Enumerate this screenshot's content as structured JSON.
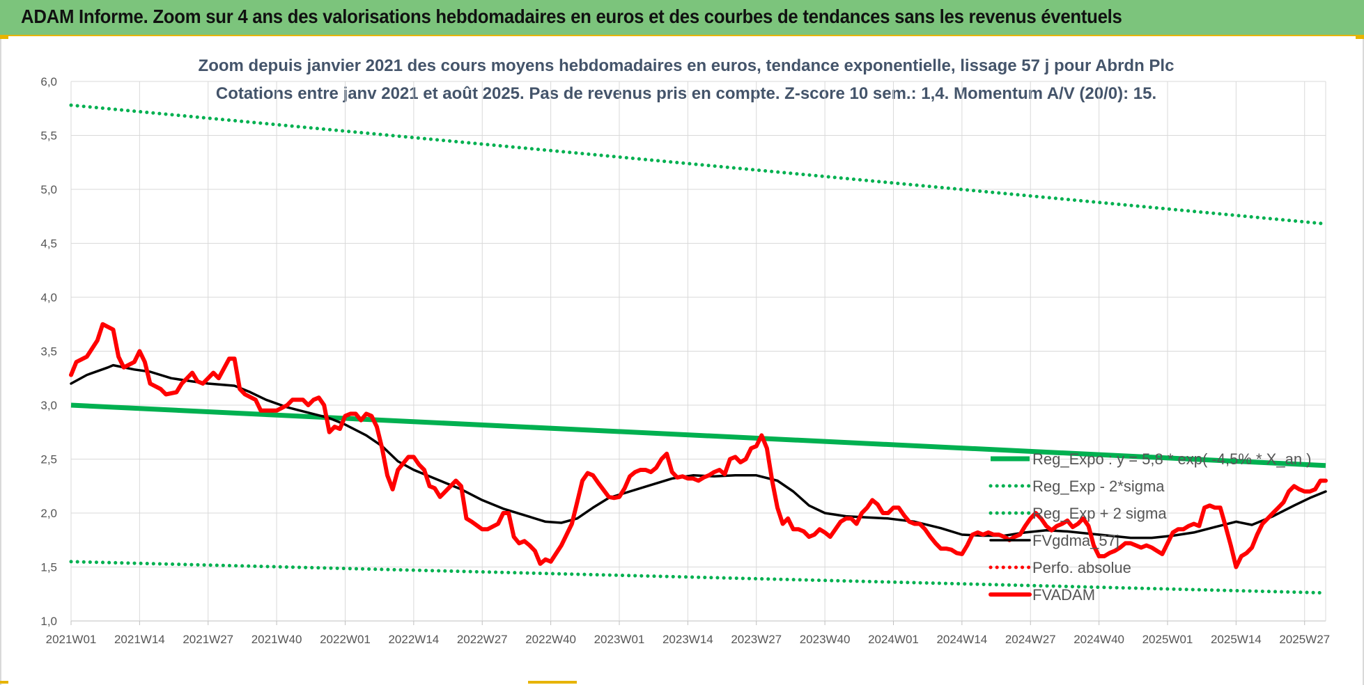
{
  "header": {
    "title": "ADAM Informe. Zoom sur 4 ans des valorisations hebdomadaires en euros et des courbes de tendances sans les revenus éventuels"
  },
  "chart_data": {
    "type": "line",
    "title": "Zoom depuis janvier 2021 des cours moyens hebdomadaires en euros, tendance exponentielle, lissage 57 j pour Abrdn Plc",
    "subtitle": "Cotations entre janv 2021 et août 2025.  Pas de revenus pris en compte. Z-score 10 sem.: 1,4. Momentum A/V (20/0): 15.",
    "xlabel": "",
    "ylabel": "",
    "ylim": [
      1.0,
      6.0
    ],
    "y_ticks": [
      "1,0",
      "1,5",
      "2,0",
      "2,5",
      "3,0",
      "3,5",
      "4,0",
      "4,5",
      "5,0",
      "5,5",
      "6,0"
    ],
    "x_week_range": [
      0,
      238
    ],
    "x_ticks": [
      {
        "w": 0,
        "label": "2021W01"
      },
      {
        "w": 13,
        "label": "2021W14"
      },
      {
        "w": 26,
        "label": "2021W27"
      },
      {
        "w": 39,
        "label": "2021W40"
      },
      {
        "w": 52,
        "label": "2022W01"
      },
      {
        "w": 65,
        "label": "2022W14"
      },
      {
        "w": 78,
        "label": "2022W27"
      },
      {
        "w": 91,
        "label": "2022W40"
      },
      {
        "w": 104,
        "label": "2023W01"
      },
      {
        "w": 117,
        "label": "2023W14"
      },
      {
        "w": 130,
        "label": "2023W27"
      },
      {
        "w": 143,
        "label": "2023W40"
      },
      {
        "w": 156,
        "label": "2024W01"
      },
      {
        "w": 169,
        "label": "2024W14"
      },
      {
        "w": 182,
        "label": "2024W27"
      },
      {
        "w": 195,
        "label": "2024W40"
      },
      {
        "w": 208,
        "label": "2025W01"
      },
      {
        "w": 221,
        "label": "2025W14"
      },
      {
        "w": 234,
        "label": "2025W27"
      }
    ],
    "grid": true,
    "legend_position": "right",
    "series": [
      {
        "name": "Reg_Expo : y = 5,8 * exp( -4,5% * X_an )",
        "style": "solid",
        "color": "#00b050",
        "points": [
          [
            0,
            3.0
          ],
          [
            238,
            2.44
          ]
        ]
      },
      {
        "name": "Reg_Exp - 2*sigma",
        "style": "dotted",
        "color": "#00b050",
        "points": [
          [
            0,
            1.55
          ],
          [
            238,
            1.26
          ]
        ]
      },
      {
        "name": "Reg_Exp + 2 sigma",
        "style": "dotted",
        "color": "#00b050",
        "points": [
          [
            0,
            5.78
          ],
          [
            238,
            4.68
          ]
        ]
      },
      {
        "name": "FVgdma_57j",
        "style": "solid-thin",
        "color": "#000000",
        "points": [
          [
            0,
            3.2
          ],
          [
            3,
            3.28
          ],
          [
            7,
            3.35
          ],
          [
            8,
            3.37
          ],
          [
            12,
            3.33
          ],
          [
            15,
            3.31
          ],
          [
            19,
            3.25
          ],
          [
            23,
            3.22
          ],
          [
            26,
            3.2
          ],
          [
            31,
            3.18
          ],
          [
            34,
            3.12
          ],
          [
            37,
            3.05
          ],
          [
            41,
            2.98
          ],
          [
            45,
            2.93
          ],
          [
            49,
            2.88
          ],
          [
            52,
            2.82
          ],
          [
            56,
            2.72
          ],
          [
            59,
            2.62
          ],
          [
            62,
            2.48
          ],
          [
            65,
            2.4
          ],
          [
            69,
            2.32
          ],
          [
            74,
            2.22
          ],
          [
            78,
            2.12
          ],
          [
            82,
            2.04
          ],
          [
            86,
            1.98
          ],
          [
            90,
            1.92
          ],
          [
            93,
            1.91
          ],
          [
            96,
            1.95
          ],
          [
            99,
            2.05
          ],
          [
            102,
            2.14
          ],
          [
            106,
            2.2
          ],
          [
            110,
            2.26
          ],
          [
            114,
            2.32
          ],
          [
            118,
            2.35
          ],
          [
            122,
            2.34
          ],
          [
            126,
            2.35
          ],
          [
            130,
            2.35
          ],
          [
            134,
            2.3
          ],
          [
            137,
            2.2
          ],
          [
            140,
            2.07
          ],
          [
            143,
            2.0
          ],
          [
            147,
            1.97
          ],
          [
            151,
            1.96
          ],
          [
            155,
            1.95
          ],
          [
            160,
            1.92
          ],
          [
            165,
            1.86
          ],
          [
            169,
            1.8
          ],
          [
            173,
            1.79
          ],
          [
            177,
            1.79
          ],
          [
            181,
            1.82
          ],
          [
            185,
            1.84
          ],
          [
            189,
            1.83
          ],
          [
            193,
            1.81
          ],
          [
            197,
            1.79
          ],
          [
            201,
            1.77
          ],
          [
            205,
            1.77
          ],
          [
            209,
            1.79
          ],
          [
            213,
            1.82
          ],
          [
            217,
            1.87
          ],
          [
            221,
            1.92
          ],
          [
            224,
            1.89
          ],
          [
            228,
            1.97
          ],
          [
            232,
            2.07
          ],
          [
            235,
            2.14
          ],
          [
            238,
            2.2
          ]
        ]
      },
      {
        "name": "Perfo. absolue",
        "style": "dotted",
        "color": "#ff0000",
        "points": []
      },
      {
        "name": "FVADAM",
        "style": "solid-thick",
        "color": "#ff0000",
        "points": [
          [
            0,
            3.28
          ],
          [
            1,
            3.4
          ],
          [
            3,
            3.45
          ],
          [
            5,
            3.6
          ],
          [
            6,
            3.75
          ],
          [
            8,
            3.7
          ],
          [
            9,
            3.45
          ],
          [
            10,
            3.35
          ],
          [
            12,
            3.4
          ],
          [
            13,
            3.5
          ],
          [
            14,
            3.4
          ],
          [
            15,
            3.2
          ],
          [
            17,
            3.15
          ],
          [
            18,
            3.1
          ],
          [
            20,
            3.12
          ],
          [
            21,
            3.2
          ],
          [
            22,
            3.25
          ],
          [
            23,
            3.3
          ],
          [
            24,
            3.22
          ],
          [
            25,
            3.2
          ],
          [
            26,
            3.25
          ],
          [
            27,
            3.3
          ],
          [
            28,
            3.25
          ],
          [
            30,
            3.43
          ],
          [
            31,
            3.43
          ],
          [
            32,
            3.15
          ],
          [
            33,
            3.1
          ],
          [
            35,
            3.05
          ],
          [
            36,
            2.95
          ],
          [
            38,
            2.95
          ],
          [
            39,
            2.95
          ],
          [
            41,
            3.0
          ],
          [
            42,
            3.05
          ],
          [
            44,
            3.05
          ],
          [
            45,
            3.0
          ],
          [
            46,
            3.05
          ],
          [
            47,
            3.07
          ],
          [
            48,
            3.0
          ],
          [
            49,
            2.75
          ],
          [
            50,
            2.8
          ],
          [
            51,
            2.78
          ],
          [
            52,
            2.9
          ],
          [
            53,
            2.92
          ],
          [
            54,
            2.92
          ],
          [
            55,
            2.86
          ],
          [
            56,
            2.92
          ],
          [
            57,
            2.9
          ],
          [
            58,
            2.8
          ],
          [
            59,
            2.6
          ],
          [
            60,
            2.35
          ],
          [
            61,
            2.22
          ],
          [
            62,
            2.4
          ],
          [
            64,
            2.52
          ],
          [
            65,
            2.52
          ],
          [
            66,
            2.45
          ],
          [
            67,
            2.4
          ],
          [
            68,
            2.25
          ],
          [
            69,
            2.23
          ],
          [
            70,
            2.15
          ],
          [
            71,
            2.2
          ],
          [
            73,
            2.3
          ],
          [
            74,
            2.25
          ],
          [
            75,
            1.95
          ],
          [
            76,
            1.92
          ],
          [
            78,
            1.85
          ],
          [
            79,
            1.85
          ],
          [
            81,
            1.9
          ],
          [
            82,
            2.0
          ],
          [
            83,
            2.0
          ],
          [
            84,
            1.78
          ],
          [
            85,
            1.72
          ],
          [
            86,
            1.74
          ],
          [
            87,
            1.7
          ],
          [
            88,
            1.65
          ],
          [
            89,
            1.53
          ],
          [
            90,
            1.57
          ],
          [
            91,
            1.55
          ],
          [
            93,
            1.7
          ],
          [
            95,
            1.9
          ],
          [
            96,
            2.1
          ],
          [
            97,
            2.3
          ],
          [
            98,
            2.37
          ],
          [
            99,
            2.35
          ],
          [
            100,
            2.28
          ],
          [
            102,
            2.15
          ],
          [
            103,
            2.14
          ],
          [
            104,
            2.15
          ],
          [
            105,
            2.23
          ],
          [
            106,
            2.34
          ],
          [
            107,
            2.38
          ],
          [
            108,
            2.4
          ],
          [
            109,
            2.4
          ],
          [
            110,
            2.38
          ],
          [
            111,
            2.42
          ],
          [
            112,
            2.5
          ],
          [
            113,
            2.55
          ],
          [
            114,
            2.38
          ],
          [
            115,
            2.33
          ],
          [
            116,
            2.34
          ],
          [
            117,
            2.32
          ],
          [
            118,
            2.32
          ],
          [
            119,
            2.3
          ],
          [
            120,
            2.33
          ],
          [
            121,
            2.35
          ],
          [
            122,
            2.38
          ],
          [
            123,
            2.4
          ],
          [
            124,
            2.36
          ],
          [
            125,
            2.5
          ],
          [
            126,
            2.52
          ],
          [
            127,
            2.47
          ],
          [
            128,
            2.5
          ],
          [
            129,
            2.6
          ],
          [
            130,
            2.62
          ],
          [
            131,
            2.72
          ],
          [
            132,
            2.6
          ],
          [
            133,
            2.3
          ],
          [
            134,
            2.05
          ],
          [
            135,
            1.9
          ],
          [
            136,
            1.95
          ],
          [
            137,
            1.85
          ],
          [
            138,
            1.85
          ],
          [
            139,
            1.83
          ],
          [
            140,
            1.78
          ],
          [
            141,
            1.8
          ],
          [
            142,
            1.85
          ],
          [
            143,
            1.82
          ],
          [
            144,
            1.78
          ],
          [
            145,
            1.85
          ],
          [
            146,
            1.92
          ],
          [
            147,
            1.95
          ],
          [
            148,
            1.95
          ],
          [
            149,
            1.9
          ],
          [
            150,
            2.0
          ],
          [
            151,
            2.05
          ],
          [
            152,
            2.12
          ],
          [
            153,
            2.08
          ],
          [
            154,
            2.0
          ],
          [
            155,
            2.0
          ],
          [
            156,
            2.05
          ],
          [
            157,
            2.05
          ],
          [
            158,
            1.98
          ],
          [
            159,
            1.92
          ],
          [
            160,
            1.9
          ],
          [
            161,
            1.9
          ],
          [
            162,
            1.85
          ],
          [
            163,
            1.78
          ],
          [
            164,
            1.72
          ],
          [
            165,
            1.67
          ],
          [
            166,
            1.67
          ],
          [
            167,
            1.66
          ],
          [
            168,
            1.63
          ],
          [
            169,
            1.62
          ],
          [
            170,
            1.7
          ],
          [
            171,
            1.8
          ],
          [
            172,
            1.82
          ],
          [
            173,
            1.8
          ],
          [
            174,
            1.82
          ],
          [
            175,
            1.8
          ],
          [
            176,
            1.8
          ],
          [
            177,
            1.78
          ],
          [
            178,
            1.75
          ],
          [
            179,
            1.78
          ],
          [
            180,
            1.8
          ],
          [
            181,
            1.88
          ],
          [
            182,
            1.95
          ],
          [
            183,
            2.0
          ],
          [
            184,
            1.95
          ],
          [
            185,
            1.88
          ],
          [
            186,
            1.84
          ],
          [
            187,
            1.88
          ],
          [
            188,
            1.9
          ],
          [
            189,
            1.93
          ],
          [
            190,
            1.87
          ],
          [
            191,
            1.9
          ],
          [
            192,
            1.95
          ],
          [
            193,
            1.88
          ],
          [
            194,
            1.7
          ],
          [
            195,
            1.6
          ],
          [
            196,
            1.6
          ],
          [
            197,
            1.63
          ],
          [
            198,
            1.65
          ],
          [
            199,
            1.68
          ],
          [
            200,
            1.72
          ],
          [
            201,
            1.72
          ],
          [
            202,
            1.7
          ],
          [
            203,
            1.68
          ],
          [
            204,
            1.7
          ],
          [
            205,
            1.68
          ],
          [
            206,
            1.65
          ],
          [
            207,
            1.62
          ],
          [
            208,
            1.72
          ],
          [
            209,
            1.82
          ],
          [
            210,
            1.85
          ],
          [
            211,
            1.85
          ],
          [
            212,
            1.88
          ],
          [
            213,
            1.9
          ],
          [
            214,
            1.88
          ],
          [
            215,
            2.05
          ],
          [
            216,
            2.07
          ],
          [
            217,
            2.05
          ],
          [
            218,
            2.05
          ],
          [
            219,
            1.88
          ],
          [
            220,
            1.7
          ],
          [
            221,
            1.5
          ],
          [
            222,
            1.6
          ],
          [
            223,
            1.63
          ],
          [
            224,
            1.68
          ],
          [
            225,
            1.8
          ],
          [
            226,
            1.9
          ],
          [
            227,
            1.95
          ],
          [
            228,
            2.0
          ],
          [
            229,
            2.05
          ],
          [
            230,
            2.1
          ],
          [
            231,
            2.2
          ],
          [
            232,
            2.25
          ],
          [
            233,
            2.22
          ],
          [
            234,
            2.2
          ],
          [
            235,
            2.2
          ],
          [
            236,
            2.22
          ],
          [
            237,
            2.3
          ],
          [
            238,
            2.3
          ]
        ]
      }
    ]
  }
}
